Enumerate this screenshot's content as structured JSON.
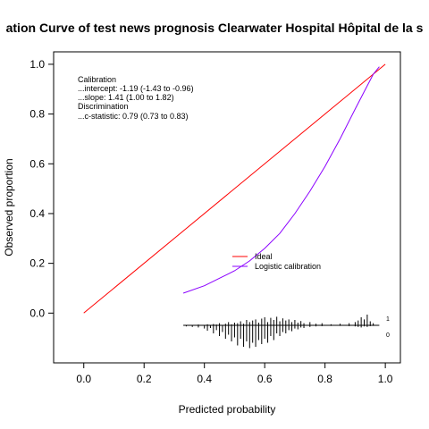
{
  "chart_data": {
    "type": "line",
    "title": "ation Curve of test news prognosis Clearwater Hospital Hôpital de la s",
    "xlabel": "Predicted probability",
    "ylabel": "Observed proportion",
    "xlim": [
      -0.1,
      1.05
    ],
    "ylim": [
      -0.2,
      1.05
    ],
    "x_ticks": [
      "0.0",
      "0.2",
      "0.4",
      "0.6",
      "0.8",
      "1.0"
    ],
    "y_ticks": [
      "0.0",
      "0.2",
      "0.4",
      "0.6",
      "0.8",
      "1.0"
    ],
    "x_tick_values": [
      0.0,
      0.2,
      0.4,
      0.6,
      0.8,
      1.0
    ],
    "y_tick_values": [
      0.0,
      0.2,
      0.4,
      0.6,
      0.8,
      1.0
    ],
    "stats_lines": [
      "Calibration",
      "...intercept: -1.19 (-1.43 to -0.96)",
      "...slope: 1.41 (1.00 to 1.82)",
      "Discrimination",
      "...c-statistic: 0.79 (0.73 to 0.83)"
    ],
    "legend": {
      "position": "center-right",
      "entries": [
        {
          "label": "Ideal",
          "color": "#ff0000"
        },
        {
          "label": "Logistic calibration",
          "color": "#8b00ff"
        }
      ]
    },
    "series": [
      {
        "name": "Ideal",
        "color": "#ff0000",
        "x": [
          0.0,
          1.0
        ],
        "y": [
          0.0,
          1.0
        ]
      },
      {
        "name": "Logistic calibration",
        "color": "#8b00ff",
        "x": [
          0.33,
          0.4,
          0.45,
          0.5,
          0.55,
          0.6,
          0.65,
          0.7,
          0.75,
          0.8,
          0.85,
          0.9,
          0.93,
          0.96,
          0.98
        ],
        "y": [
          0.08,
          0.11,
          0.14,
          0.17,
          0.21,
          0.26,
          0.32,
          0.4,
          0.49,
          0.59,
          0.7,
          0.82,
          0.89,
          0.96,
          0.99
        ]
      }
    ],
    "distribution_labels": {
      "upper": "1",
      "lower": "0"
    },
    "distribution_bins": [
      {
        "x": 0.34,
        "up": 0.0,
        "down": 0.004
      },
      {
        "x": 0.36,
        "up": 0.0,
        "down": 0.006
      },
      {
        "x": 0.38,
        "up": 0.003,
        "down": 0.008
      },
      {
        "x": 0.4,
        "up": 0.0,
        "down": 0.012
      },
      {
        "x": 0.41,
        "up": 0.004,
        "down": 0.02
      },
      {
        "x": 0.42,
        "up": 0.0,
        "down": 0.01
      },
      {
        "x": 0.43,
        "up": 0.005,
        "down": 0.03
      },
      {
        "x": 0.44,
        "up": 0.003,
        "down": 0.018
      },
      {
        "x": 0.45,
        "up": 0.008,
        "down": 0.04
      },
      {
        "x": 0.46,
        "up": 0.0,
        "down": 0.025
      },
      {
        "x": 0.47,
        "up": 0.006,
        "down": 0.05
      },
      {
        "x": 0.48,
        "up": 0.012,
        "down": 0.035
      },
      {
        "x": 0.49,
        "up": 0.004,
        "down": 0.06
      },
      {
        "x": 0.5,
        "up": 0.01,
        "down": 0.045
      },
      {
        "x": 0.51,
        "up": 0.008,
        "down": 0.075
      },
      {
        "x": 0.52,
        "up": 0.015,
        "down": 0.05
      },
      {
        "x": 0.53,
        "up": 0.006,
        "down": 0.08
      },
      {
        "x": 0.54,
        "up": 0.02,
        "down": 0.06
      },
      {
        "x": 0.55,
        "up": 0.012,
        "down": 0.085
      },
      {
        "x": 0.56,
        "up": 0.018,
        "down": 0.065
      },
      {
        "x": 0.57,
        "up": 0.022,
        "down": 0.08
      },
      {
        "x": 0.58,
        "up": 0.01,
        "down": 0.055
      },
      {
        "x": 0.59,
        "up": 0.025,
        "down": 0.07
      },
      {
        "x": 0.6,
        "up": 0.03,
        "down": 0.05
      },
      {
        "x": 0.61,
        "up": 0.012,
        "down": 0.065
      },
      {
        "x": 0.62,
        "up": 0.028,
        "down": 0.04
      },
      {
        "x": 0.63,
        "up": 0.02,
        "down": 0.055
      },
      {
        "x": 0.64,
        "up": 0.032,
        "down": 0.03
      },
      {
        "x": 0.65,
        "up": 0.015,
        "down": 0.04
      },
      {
        "x": 0.66,
        "up": 0.026,
        "down": 0.025
      },
      {
        "x": 0.67,
        "up": 0.018,
        "down": 0.03
      },
      {
        "x": 0.68,
        "up": 0.022,
        "down": 0.018
      },
      {
        "x": 0.69,
        "up": 0.012,
        "down": 0.022
      },
      {
        "x": 0.7,
        "up": 0.02,
        "down": 0.012
      },
      {
        "x": 0.71,
        "up": 0.01,
        "down": 0.015
      },
      {
        "x": 0.72,
        "up": 0.016,
        "down": 0.008
      },
      {
        "x": 0.73,
        "up": 0.008,
        "down": 0.01
      },
      {
        "x": 0.75,
        "up": 0.012,
        "down": 0.006
      },
      {
        "x": 0.77,
        "up": 0.006,
        "down": 0.004
      },
      {
        "x": 0.79,
        "up": 0.008,
        "down": 0.003
      },
      {
        "x": 0.82,
        "up": 0.004,
        "down": 0.002
      },
      {
        "x": 0.85,
        "up": 0.006,
        "down": 0.002
      },
      {
        "x": 0.88,
        "up": 0.008,
        "down": 0.003
      },
      {
        "x": 0.9,
        "up": 0.012,
        "down": 0.004
      },
      {
        "x": 0.91,
        "up": 0.018,
        "down": 0.006
      },
      {
        "x": 0.92,
        "up": 0.03,
        "down": 0.008
      },
      {
        "x": 0.93,
        "up": 0.022,
        "down": 0.004
      },
      {
        "x": 0.94,
        "up": 0.04,
        "down": 0.006
      },
      {
        "x": 0.95,
        "up": 0.015,
        "down": 0.003
      },
      {
        "x": 0.96,
        "up": 0.008,
        "down": 0.002
      }
    ]
  }
}
